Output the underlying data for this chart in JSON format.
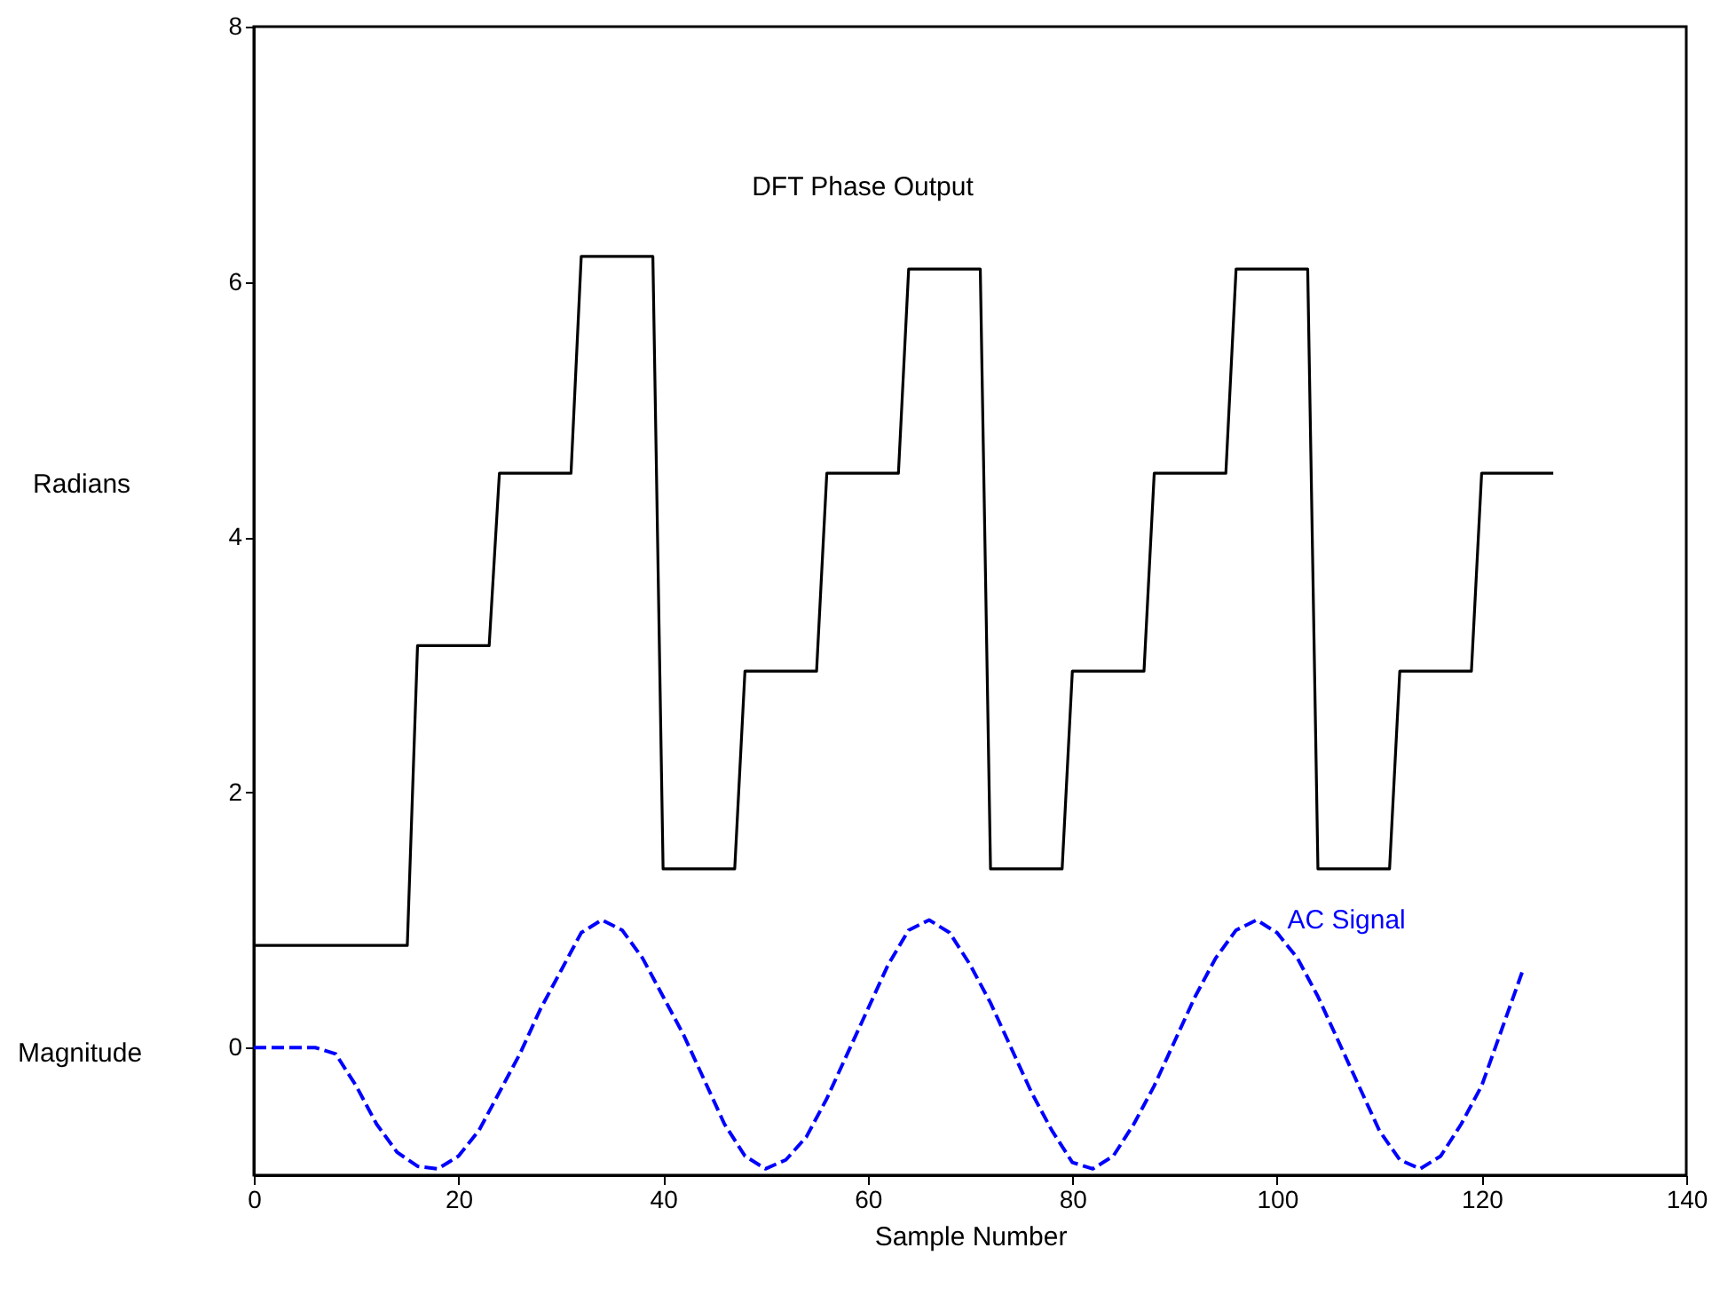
{
  "chart_data": {
    "type": "line",
    "xlabel": "Sample Number",
    "ylabel": "Radians",
    "annotations": [
      "Magnitude"
    ],
    "xlim": [
      0,
      140
    ],
    "xticks": [
      0,
      20,
      40,
      60,
      80,
      100,
      120,
      140
    ],
    "ylim": [
      -1,
      8
    ],
    "yticks": [
      0,
      2,
      4,
      6,
      8
    ],
    "grid": false,
    "marker": "none",
    "series": [
      {
        "name": "DFT Phase Output",
        "color": "#000000",
        "line_style": "solid",
        "x": [
          0,
          15,
          16,
          23,
          24,
          31,
          32,
          39,
          40,
          47,
          48,
          55,
          56,
          63,
          64,
          71,
          72,
          79,
          80,
          87,
          88,
          95,
          96,
          103,
          104,
          111,
          112,
          119,
          120,
          127
        ],
        "values": [
          0.8,
          0.8,
          3.15,
          3.15,
          4.5,
          4.5,
          6.2,
          6.2,
          1.4,
          1.4,
          2.95,
          2.95,
          4.5,
          4.5,
          6.1,
          6.1,
          1.4,
          1.4,
          2.95,
          2.95,
          4.5,
          4.5,
          6.1,
          6.1,
          1.4,
          1.4,
          2.95,
          2.95,
          4.5,
          4.5
        ]
      },
      {
        "name": "AC Signal",
        "color": "#0000ff",
        "line_style": "dashed",
        "x": [
          0,
          6,
          8,
          10,
          12,
          14,
          16,
          18,
          20,
          22,
          24,
          26,
          28,
          30,
          32,
          34,
          36,
          38,
          40,
          42,
          44,
          46,
          48,
          50,
          52,
          54,
          56,
          58,
          60,
          62,
          64,
          66,
          68,
          70,
          72,
          74,
          76,
          78,
          80,
          82,
          84,
          86,
          88,
          90,
          92,
          94,
          96,
          98,
          100,
          102,
          104,
          106,
          108,
          110,
          112,
          114,
          116,
          118,
          120,
          122,
          124
        ],
        "values": [
          0,
          0,
          -0.05,
          -0.3,
          -0.6,
          -0.82,
          -0.93,
          -0.95,
          -0.85,
          -0.65,
          -0.35,
          -0.05,
          0.3,
          0.6,
          0.9,
          1.0,
          0.92,
          0.7,
          0.4,
          0.1,
          -0.25,
          -0.6,
          -0.85,
          -0.95,
          -0.88,
          -0.7,
          -0.4,
          -0.05,
          0.3,
          0.65,
          0.92,
          1.0,
          0.9,
          0.65,
          0.35,
          0.0,
          -0.35,
          -0.65,
          -0.9,
          -0.95,
          -0.85,
          -0.6,
          -0.3,
          0.05,
          0.4,
          0.7,
          0.92,
          1.0,
          0.9,
          0.7,
          0.4,
          0.05,
          -0.3,
          -0.65,
          -0.88,
          -0.95,
          -0.85,
          -0.6,
          -0.3,
          0.15,
          0.6
        ]
      }
    ]
  }
}
